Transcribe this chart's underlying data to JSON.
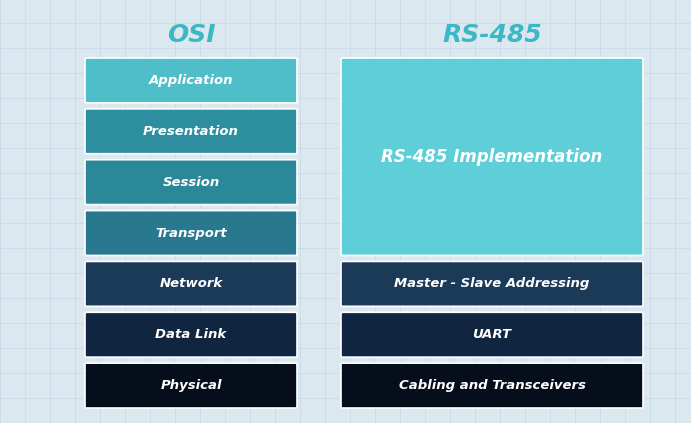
{
  "background_color": "#dce8f0",
  "grid_color": "#c0d4e4",
  "title_osi": "OSI",
  "title_rs485": "RS-485",
  "title_color": "#3ab8c5",
  "title_fontsize": 18,
  "osi_layers": [
    {
      "name": "Application",
      "color": "#50bec8"
    },
    {
      "name": "Presentation",
      "color": "#2d8ea0"
    },
    {
      "name": "Session",
      "color": "#2a8898"
    },
    {
      "name": "Transport",
      "color": "#287890"
    },
    {
      "name": "Network",
      "color": "#1a3a58"
    },
    {
      "name": "Data Link",
      "color": "#102540"
    },
    {
      "name": "Physical",
      "color": "#060e1c"
    }
  ],
  "rs485_layers": [
    {
      "name": "RS-485 Implementation",
      "color": "#5ecfd8",
      "span": 4
    },
    {
      "name": "Master - Slave Addressing",
      "color": "#1a3a58",
      "span": 1
    },
    {
      "name": "UART",
      "color": "#102540",
      "span": 1
    },
    {
      "name": "Cabling and Transceivers",
      "color": "#060e1c",
      "span": 1
    }
  ],
  "text_color": "#ffffff",
  "border_color": "#ffffff",
  "label_fontsize": 9.5,
  "impl_fontsize": 12
}
